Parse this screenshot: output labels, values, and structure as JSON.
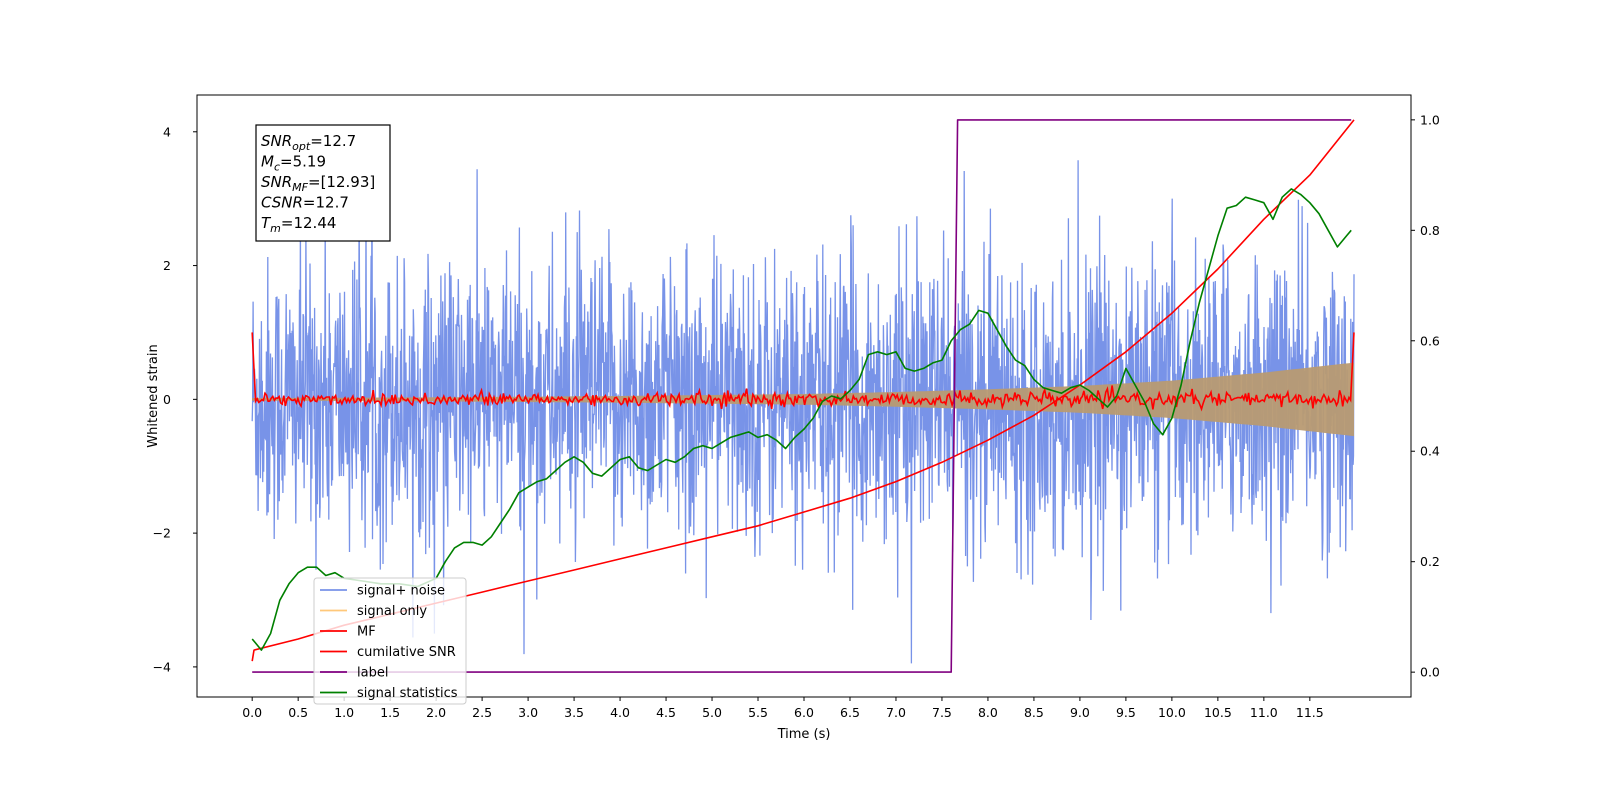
{
  "chart_data": {
    "type": "line",
    "title": "",
    "xlabel": "Time (s)",
    "ylabel": "Whitened strain",
    "xlim": [
      -0.6,
      12.6
    ],
    "ylim": [
      -4.45,
      4.55
    ],
    "y2lim": [
      -0.045,
      1.045
    ],
    "x_ticks": [
      0.0,
      0.5,
      1.0,
      1.5,
      2.0,
      2.5,
      3.0,
      3.5,
      4.0,
      4.5,
      5.0,
      5.5,
      6.0,
      6.5,
      7.0,
      7.5,
      8.0,
      8.5,
      9.0,
      9.5,
      10.0,
      10.5,
      11.0,
      11.5
    ],
    "x_tick_labels": [
      "0.0",
      "0.5",
      "1.0",
      "1.5",
      "2.0",
      "2.5",
      "3.0",
      "3.5",
      "4.0",
      "4.5",
      "5.0",
      "5.5",
      "6.0",
      "6.5",
      "7.0",
      "7.5",
      "8.0",
      "8.5",
      "9.0",
      "9.5",
      "10.0",
      "10.5",
      "11.0",
      "11.5"
    ],
    "y_ticks": [
      -4,
      -2,
      0,
      2,
      4
    ],
    "y_tick_labels": [
      "−4",
      "−2",
      "0",
      "2",
      "4"
    ],
    "y2_ticks": [
      0.0,
      0.2,
      0.4,
      0.6,
      0.8,
      1.0
    ],
    "y2_tick_labels": [
      "0.0",
      "0.2",
      "0.4",
      "0.6",
      "0.8",
      "1.0"
    ],
    "grid": false,
    "legend_position": "lower-left",
    "annotation": {
      "lines": [
        {
          "base": "SNR",
          "sub": "opt",
          "rest": "=12.7"
        },
        {
          "base": "M",
          "sub": "c",
          "rest": "=5.19"
        },
        {
          "base": "SNR",
          "sub": "MF",
          "rest": "=[12.93]"
        },
        {
          "base": "CSNR",
          "sub": "",
          "rest": "=12.7"
        },
        {
          "base": "T",
          "sub": "m",
          "rest": "=12.44"
        }
      ]
    },
    "series": [
      {
        "name": "signal+ noise",
        "axis": "left",
        "color": "#7893e8",
        "description_stats": {
          "x_start": 0.0,
          "x_end": 11.98,
          "typical_min": -2.8,
          "typical_max": 3.2,
          "peak_max": 4.15,
          "peak_min": -4.0
        }
      },
      {
        "name": "signal only",
        "axis": "left",
        "color": "#ffc87a",
        "envelope": {
          "x": [
            0,
            2,
            4,
            6,
            7,
            8,
            9,
            10,
            11,
            11.98
          ],
          "amp": [
            0.02,
            0.03,
            0.05,
            0.08,
            0.11,
            0.15,
            0.2,
            0.28,
            0.4,
            0.55
          ]
        }
      },
      {
        "name": "MF",
        "axis": "left",
        "color": "#ff0000",
        "endpoints": {
          "x_start": 0.0,
          "y_start": 1.0,
          "x_end": 11.98,
          "y_end": 1.0
        },
        "noise_amp": 0.09
      },
      {
        "name": "cumilative SNR",
        "axis": "right",
        "color": "#ff0000",
        "x": [
          0.0,
          0.02,
          0.5,
          1.0,
          1.5,
          2.0,
          2.5,
          3.0,
          3.5,
          4.0,
          4.5,
          5.0,
          5.5,
          6.0,
          6.5,
          7.0,
          7.5,
          8.0,
          8.5,
          9.0,
          9.5,
          10.0,
          10.5,
          11.0,
          11.5,
          11.98
        ],
        "values": [
          0.02,
          0.04,
          0.06,
          0.085,
          0.105,
          0.125,
          0.145,
          0.165,
          0.185,
          0.205,
          0.225,
          0.245,
          0.265,
          0.29,
          0.315,
          0.345,
          0.38,
          0.42,
          0.465,
          0.52,
          0.58,
          0.65,
          0.73,
          0.82,
          0.9,
          1.0
        ]
      },
      {
        "name": "label",
        "axis": "right",
        "color": "#800080",
        "x": [
          0.0,
          7.6,
          7.67,
          11.95
        ],
        "values": [
          0.0,
          0.0,
          1.0,
          1.0
        ]
      },
      {
        "name": "signal statistics",
        "axis": "right",
        "color": "#008000",
        "x": [
          0.0,
          0.1,
          0.2,
          0.3,
          0.4,
          0.5,
          0.6,
          0.7,
          0.8,
          0.9,
          1.0,
          1.2,
          1.4,
          1.6,
          1.8,
          2.0,
          2.1,
          2.2,
          2.3,
          2.4,
          2.5,
          2.6,
          2.7,
          2.8,
          2.9,
          3.0,
          3.1,
          3.2,
          3.3,
          3.4,
          3.5,
          3.6,
          3.7,
          3.8,
          3.9,
          4.0,
          4.1,
          4.2,
          4.3,
          4.4,
          4.5,
          4.6,
          4.7,
          4.8,
          4.9,
          5.0,
          5.1,
          5.2,
          5.3,
          5.4,
          5.5,
          5.6,
          5.7,
          5.8,
          5.9,
          6.0,
          6.1,
          6.2,
          6.3,
          6.4,
          6.5,
          6.6,
          6.7,
          6.8,
          6.9,
          7.0,
          7.1,
          7.2,
          7.3,
          7.4,
          7.5,
          7.6,
          7.7,
          7.8,
          7.9,
          8.0,
          8.1,
          8.2,
          8.3,
          8.4,
          8.5,
          8.6,
          8.7,
          8.8,
          8.9,
          9.0,
          9.1,
          9.2,
          9.3,
          9.4,
          9.5,
          9.6,
          9.7,
          9.8,
          9.9,
          10.0,
          10.1,
          10.2,
          10.3,
          10.4,
          10.5,
          10.6,
          10.7,
          10.8,
          10.9,
          11.0,
          11.1,
          11.2,
          11.3,
          11.4,
          11.5,
          11.6,
          11.7,
          11.8,
          11.9,
          11.95
        ],
        "values": [
          0.06,
          0.04,
          0.07,
          0.13,
          0.16,
          0.18,
          0.19,
          0.19,
          0.175,
          0.18,
          0.17,
          0.165,
          0.16,
          0.16,
          0.155,
          0.17,
          0.2,
          0.225,
          0.235,
          0.235,
          0.23,
          0.245,
          0.27,
          0.295,
          0.325,
          0.335,
          0.345,
          0.35,
          0.365,
          0.38,
          0.39,
          0.38,
          0.36,
          0.355,
          0.37,
          0.385,
          0.39,
          0.37,
          0.365,
          0.375,
          0.385,
          0.38,
          0.39,
          0.405,
          0.41,
          0.405,
          0.415,
          0.425,
          0.43,
          0.435,
          0.425,
          0.43,
          0.42,
          0.405,
          0.425,
          0.44,
          0.46,
          0.49,
          0.5,
          0.495,
          0.51,
          0.53,
          0.575,
          0.58,
          0.575,
          0.58,
          0.55,
          0.545,
          0.55,
          0.56,
          0.565,
          0.6,
          0.62,
          0.63,
          0.655,
          0.65,
          0.62,
          0.59,
          0.565,
          0.555,
          0.53,
          0.515,
          0.51,
          0.505,
          0.515,
          0.52,
          0.51,
          0.495,
          0.48,
          0.5,
          0.55,
          0.52,
          0.49,
          0.45,
          0.43,
          0.46,
          0.52,
          0.6,
          0.67,
          0.73,
          0.79,
          0.84,
          0.845,
          0.86,
          0.855,
          0.85,
          0.82,
          0.86,
          0.875,
          0.865,
          0.85,
          0.83,
          0.8,
          0.77,
          0.79,
          0.8
        ]
      }
    ]
  }
}
